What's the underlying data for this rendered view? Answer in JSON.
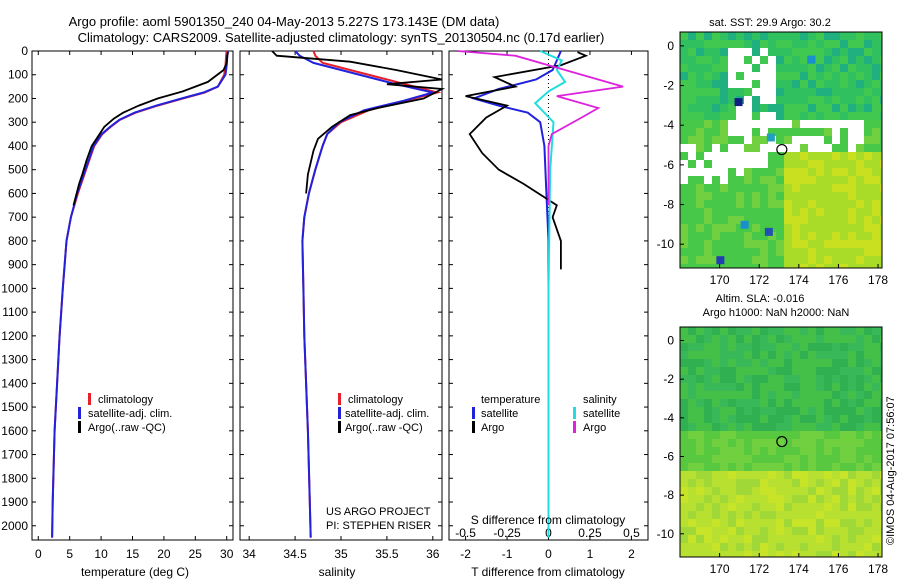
{
  "header": {
    "line1": "Argo profile: aoml 5901350_240 04-May-2013 5.227S 173.143E (DM data)",
    "line2": "Climatology: CARS2009. Satellite-adjusted climatology: synTS_20130504.nc (0.17d earlier)"
  },
  "watermark": "©IMOS 04-Aug-2017 07:56:07",
  "colors": {
    "climatology": "#e8202a",
    "satellite": "#2222dd",
    "argo": "#000000",
    "salinity_satellite": "#22dddd",
    "salinity_argo": "#dd22dd"
  },
  "chart_data": [
    {
      "id": "temperature",
      "type": "line",
      "xlabel": "temperature (deg C)",
      "ylabel": "",
      "xlim": [
        -1,
        31
      ],
      "ylim": [
        2060,
        0
      ],
      "xticks": [
        0,
        5,
        10,
        15,
        20,
        25,
        30
      ],
      "yticks": [
        0,
        100,
        200,
        300,
        400,
        500,
        600,
        700,
        800,
        900,
        1000,
        1100,
        1200,
        1300,
        1400,
        1500,
        1600,
        1700,
        1800,
        1900,
        2000
      ],
      "legend": [
        "climatology",
        "satellite-adj. clim.",
        "Argo(..raw -QC)"
      ],
      "series": [
        {
          "name": "climatology",
          "color": "#e8202a",
          "x": [
            30.0,
            29.9,
            29.8,
            29.6,
            28.6,
            26.5,
            23.0,
            19.0,
            15.5,
            13.0,
            11.5,
            10.2,
            8.9,
            7.6,
            6.3,
            5.2,
            4.5,
            3.9,
            3.4,
            3.0,
            2.6,
            2.3,
            2.2
          ],
          "y": [
            0,
            20,
            60,
            100,
            150,
            175,
            200,
            230,
            260,
            290,
            320,
            350,
            400,
            500,
            600,
            700,
            800,
            1000,
            1200,
            1400,
            1600,
            1900,
            2050
          ]
        },
        {
          "name": "satellite-adj. clim.",
          "color": "#2222dd",
          "x": [
            30.2,
            30.1,
            30.0,
            29.8,
            28.6,
            26.3,
            22.8,
            18.8,
            15.3,
            12.9,
            11.4,
            10.1,
            8.8,
            7.5,
            6.2,
            5.2,
            4.5,
            3.9,
            3.4,
            3.0,
            2.6,
            2.3,
            2.2
          ],
          "y": [
            0,
            20,
            60,
            100,
            150,
            175,
            200,
            230,
            260,
            290,
            320,
            350,
            400,
            500,
            600,
            700,
            800,
            1000,
            1200,
            1400,
            1600,
            1900,
            2050
          ]
        },
        {
          "name": "Argo(..raw -QC)",
          "color": "#000000",
          "x": [
            30.2,
            30.1,
            30.0,
            29.5,
            27.0,
            23.0,
            19.0,
            16.0,
            13.5,
            12.0,
            10.5,
            9.5,
            8.5,
            7.7,
            7.0,
            6.5,
            5.6
          ],
          "y": [
            5,
            20,
            50,
            80,
            130,
            170,
            200,
            230,
            260,
            285,
            320,
            360,
            400,
            460,
            520,
            560,
            650
          ]
        }
      ]
    },
    {
      "id": "salinity",
      "type": "line",
      "xlabel": "salinity",
      "ylabel": "",
      "xlim": [
        33.9,
        36.1
      ],
      "ylim": [
        2060,
        0
      ],
      "xticks": [
        34,
        34.5,
        35,
        35.5,
        36
      ],
      "xticklabels": [
        "34",
        "34.5",
        "35",
        "35.5",
        "36"
      ],
      "legend": [
        "climatology",
        "satellite-adj. clim.",
        "Argo(..raw -QC)"
      ],
      "annotations": [
        "US ARGO PROJECT",
        "PI: STEPHEN RISER"
      ],
      "series": [
        {
          "name": "climatology",
          "color": "#e8202a",
          "x": [
            34.7,
            34.72,
            34.8,
            35.2,
            35.7,
            36.05,
            35.7,
            35.3,
            35.0,
            34.85,
            34.8,
            34.72,
            34.65,
            34.6,
            34.58,
            34.59,
            34.6,
            34.62,
            34.64,
            34.66,
            34.67
          ],
          "y": [
            0,
            20,
            50,
            90,
            140,
            175,
            210,
            250,
            300,
            350,
            400,
            500,
            600,
            700,
            800,
            1000,
            1200,
            1400,
            1600,
            1900,
            2050
          ]
        },
        {
          "name": "satellite-adj. clim.",
          "color": "#2222dd",
          "x": [
            34.5,
            34.55,
            34.7,
            35.1,
            35.6,
            36.0,
            35.68,
            35.25,
            34.98,
            34.85,
            34.8,
            34.72,
            34.65,
            34.6,
            34.58,
            34.59,
            34.6,
            34.62,
            34.64,
            34.66,
            34.67
          ],
          "y": [
            0,
            20,
            50,
            90,
            140,
            175,
            210,
            250,
            300,
            350,
            400,
            500,
            600,
            700,
            800,
            1000,
            1200,
            1400,
            1600,
            1900,
            2050
          ]
        },
        {
          "name": "Argo(..raw -QC)",
          "color": "#000000",
          "x": [
            34.25,
            34.3,
            35.1,
            35.6,
            36.1,
            35.5,
            36.1,
            35.9,
            35.4,
            35.1,
            34.9,
            34.75,
            34.7,
            34.67,
            34.64,
            34.62
          ],
          "y": [
            0,
            20,
            45,
            80,
            120,
            140,
            160,
            200,
            240,
            270,
            320,
            370,
            420,
            470,
            520,
            600
          ]
        }
      ]
    },
    {
      "id": "differences",
      "type": "line",
      "xlabel": "T difference from climatology",
      "xlabel_top": "S difference from climatology",
      "xlim": [
        -2.4,
        2.4
      ],
      "ylim": [
        2060,
        0
      ],
      "xticks": [
        -2,
        -1,
        0,
        1,
        2
      ],
      "xticks_top": [
        -0.5,
        -0.25,
        0,
        0.25,
        0.5
      ],
      "xticklabels_top": [
        "-0.5",
        "-0.25",
        "0",
        "0.25",
        "0.5"
      ],
      "legend_temperature": {
        "heading": "temperature",
        "entries": [
          "satellite",
          "Argo"
        ]
      },
      "legend_salinity": {
        "heading": "salinity",
        "entries": [
          "satellite",
          "Argo"
        ]
      },
      "series": [
        {
          "name": "temperature satellite",
          "color": "#2222dd",
          "x": [
            0.3,
            0.2,
            0.1,
            -0.3,
            -1.2,
            -1.8,
            -1.2,
            -0.5,
            -0.2,
            -0.1,
            -0.05,
            0,
            0,
            0
          ],
          "y": [
            0,
            40,
            80,
            120,
            160,
            200,
            230,
            260,
            300,
            400,
            600,
            800,
            1500,
            2050
          ]
        },
        {
          "name": "temperature Argo",
          "color": "#000000",
          "x": [
            0.7,
            0.9,
            0.3,
            -1.3,
            -0.8,
            -2.0,
            -1.0,
            -1.5,
            -1.9,
            -1.6,
            -1.2,
            -0.6,
            0.2,
            0.1,
            0.3,
            0.3
          ],
          "y": [
            5,
            20,
            60,
            110,
            150,
            190,
            230,
            280,
            350,
            430,
            500,
            560,
            650,
            700,
            800,
            920
          ]
        },
        {
          "name": "salinity satellite",
          "color": "#22dddd",
          "x": [
            -0.05,
            0.08,
            0.05,
            0.1,
            0.0,
            -0.08,
            0.03,
            0.01,
            0.0,
            0.0
          ],
          "y": [
            0,
            40,
            80,
            130,
            170,
            220,
            300,
            500,
            1000,
            2050
          ]
        },
        {
          "name": "salinity Argo",
          "color": "#dd22dd",
          "x": [
            -0.55,
            -0.2,
            0.1,
            0.45,
            0.05,
            0.3,
            0.2,
            0.02,
            0.0,
            0.0,
            0.0,
            0.0
          ],
          "y": [
            0,
            20,
            80,
            150,
            190,
            240,
            280,
            350,
            400,
            500,
            600,
            650
          ]
        }
      ]
    },
    {
      "id": "sst_map",
      "type": "heatmap",
      "title": "sat. SST: 29.9 Argo: 30.2",
      "xlim": [
        168,
        178.2
      ],
      "ylim": [
        -11.2,
        0.7
      ],
      "xticks": [
        170,
        172,
        174,
        176,
        178
      ],
      "yticks": [
        0,
        -2,
        -4,
        -6,
        -8,
        -10
      ],
      "marker": {
        "lon": 173.143,
        "lat": -5.227
      }
    },
    {
      "id": "sla_map",
      "type": "heatmap",
      "title_line1": "Altim. SLA: -0.016",
      "title_line2": "Argo h1000: NaN h2000: NaN",
      "xlim": [
        168,
        178.2
      ],
      "ylim": [
        -11.2,
        0.7
      ],
      "xticks": [
        170,
        172,
        174,
        176,
        178
      ],
      "yticks": [
        0,
        -2,
        -4,
        -6,
        -8,
        -10
      ],
      "marker": {
        "lon": 173.143,
        "lat": -5.227
      }
    }
  ]
}
